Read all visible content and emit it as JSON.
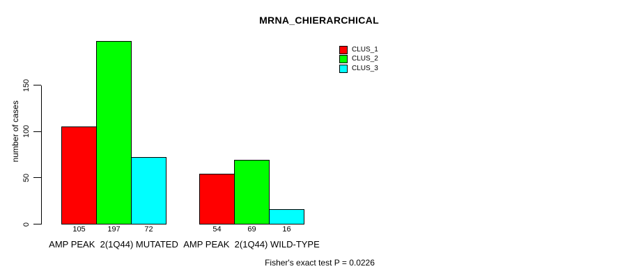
{
  "chart_data": {
    "type": "bar",
    "title": "MRNA_CHIERARCHICAL",
    "ylabel": "number of cases",
    "annotation": "Fisher's exact test P = 0.0226",
    "categories": [
      "AMP PEAK  2(1Q44) MUTATED",
      "AMP PEAK  2(1Q44) WILD-TYPE"
    ],
    "series": [
      {
        "name": "CLUS_1",
        "color": "#ff0000",
        "values": [
          105,
          54
        ]
      },
      {
        "name": "CLUS_2",
        "color": "#00ff00",
        "values": [
          197,
          69
        ]
      },
      {
        "name": "CLUS_3",
        "color": "#00ffff",
        "values": [
          72,
          16
        ]
      }
    ],
    "yticks": [
      0,
      50,
      100,
      150
    ],
    "ylim": [
      0,
      206
    ],
    "grid": false,
    "legend_position": "inside-top-right",
    "bar_border_color": "#000000",
    "axis_color": "#000000"
  },
  "legend": {
    "items": [
      {
        "label": "CLUS_1",
        "color": "#ff0000"
      },
      {
        "label": "CLUS_2",
        "color": "#00ff00"
      },
      {
        "label": "CLUS_3",
        "color": "#00ffff"
      }
    ]
  }
}
